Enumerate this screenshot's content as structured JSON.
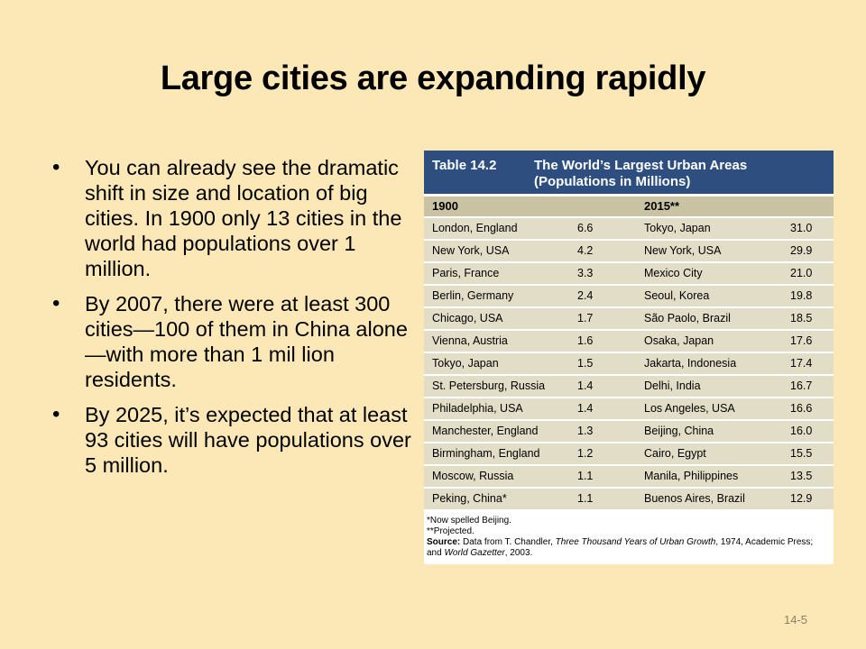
{
  "slide": {
    "title": "Large cities are expanding rapidly",
    "bullets": [
      "You can already see the dramatic shift in size and location of big cities. In 1900 only 13 cities in the world had populations over 1 million.",
      "By 2007, there were at least 300 cities—100 of them in China alone—with more than 1 mil lion residents.",
      "By 2025, it’s expected that at least 93 cities will have populations over 5 million."
    ],
    "page_number": "14-5"
  },
  "table": {
    "number": "Table 14.2",
    "title_line1": "The World’s Largest Urban Areas",
    "title_line2": "(Populations in Millions)",
    "year_1900": "1900",
    "year_2015": "2015**",
    "rows": [
      [
        "London, England",
        "6.6",
        "Tokyo, Japan",
        "31.0"
      ],
      [
        "New York, USA",
        "4.2",
        "New York, USA",
        "29.9"
      ],
      [
        "Paris, France",
        "3.3",
        "Mexico City",
        "21.0"
      ],
      [
        "Berlin, Germany",
        "2.4",
        "Seoul, Korea",
        "19.8"
      ],
      [
        "Chicago, USA",
        "1.7",
        "São Paolo, Brazil",
        "18.5"
      ],
      [
        "Vienna, Austria",
        "1.6",
        "Osaka, Japan",
        "17.6"
      ],
      [
        "Tokyo, Japan",
        "1.5",
        "Jakarta, Indonesia",
        "17.4"
      ],
      [
        "St. Petersburg, Russia",
        "1.4",
        "Delhi, India",
        "16.7"
      ],
      [
        "Philadelphia, USA",
        "1.4",
        "Los Angeles, USA",
        "16.6"
      ],
      [
        "Manchester, England",
        "1.3",
        "Beijing, China",
        "16.0"
      ],
      [
        "Birmingham, England",
        "1.2",
        "Cairo, Egypt",
        "15.5"
      ],
      [
        "Moscow, Russia",
        "1.1",
        "Manila, Philippines",
        "13.5"
      ],
      [
        "Peking, China*",
        "1.1",
        "Buenos Aires, Brazil",
        "12.9"
      ]
    ],
    "note1": "*Now spelled Beijing.",
    "note2": "**Projected.",
    "source_label": "Source:",
    "source_text_a": " Data from T. Chandler, ",
    "source_book": "Three Thousand Years of Urban Growth",
    "source_text_b": ", 1974, Academic Press;",
    "source_line2_a": "and ",
    "source_line2_book": "World Gazetter",
    "source_line2_b": ", 2003."
  },
  "colors": {
    "background": "#fbe8b6",
    "table_header": "#2d4e7e",
    "year_band": "#c9c3a3",
    "row_fill": "#e2ddc6"
  }
}
